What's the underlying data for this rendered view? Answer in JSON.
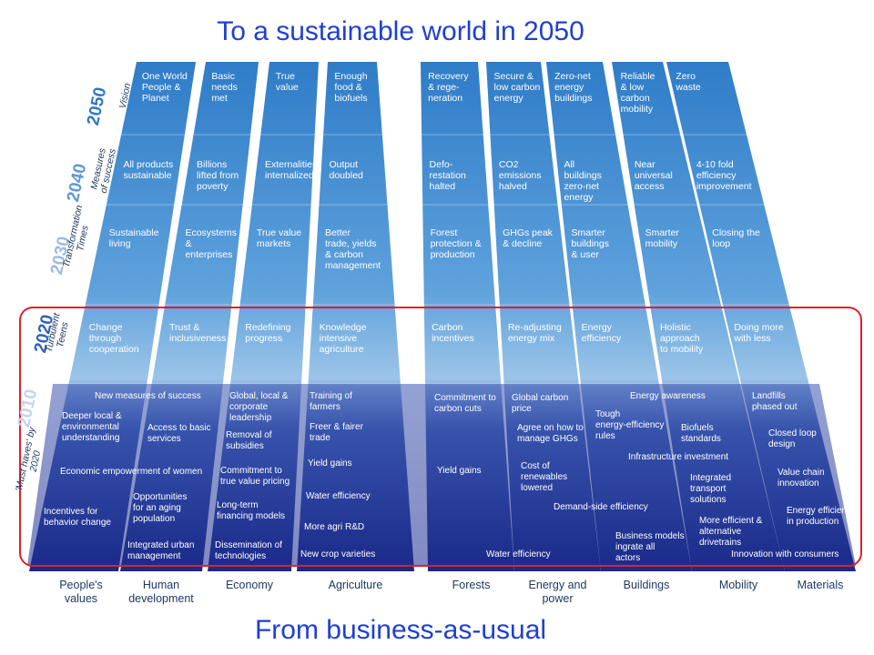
{
  "title": "To a sustainable world in 2050",
  "subtitle": "From business-as-usual",
  "years": [
    "2050",
    "2040",
    "2030",
    "2020",
    "2010"
  ],
  "row_labels": [
    "Vision",
    "Measures\nof success",
    "Transformation\nTimes",
    "Turbulent\nTeens",
    "'Must haves' by 2020"
  ],
  "columns": [
    {
      "name": "People's\nvalues",
      "cells": [
        "One World\nPeople &\nPlanet",
        "All products\nsustainable",
        "Sustainable\nliving",
        "Change\nthrough\ncooperation"
      ]
    },
    {
      "name": "Human\ndevelopment",
      "cells": [
        "Basic\nneeds\nmet",
        "Billions\nlifted from\npoverty",
        "Ecosystems\n&\nenterprises",
        "Trust &\ninclusiveness"
      ]
    },
    {
      "name": "Economy",
      "cells": [
        "True\nvalue",
        "Externalities\ninternalized",
        "True value\nmarkets",
        "Redefining\nprogress"
      ]
    },
    {
      "name": "Agriculture",
      "cells": [
        "Enough\nfood &\nbiofuels",
        "Output\ndoubled",
        "Better\ntrade, yields\n& carbon\nmanagement",
        "Knowledge\nintensive\nagriculture"
      ]
    },
    {
      "name": "Forests",
      "cells": [
        "Recovery\n& rege-\nneration",
        "Defo-\nrestation\nhalted",
        "Forest\nprotection &\nproduction",
        "Carbon\nincentives"
      ]
    },
    {
      "name": "Energy and\npower",
      "cells": [
        "Secure &\nlow carbon\nenergy",
        "CO2\nemissions\nhalved",
        "GHGs peak\n& decline",
        "Re-adjusting\nenergy mix"
      ]
    },
    {
      "name": "Buildings",
      "cells": [
        "Zero-net\nenergy\nbuildings",
        "All\nbuildings\nzero-net\nenergy",
        "Smarter\nbuildings\n& user",
        "Energy\nefficiency"
      ]
    },
    {
      "name": "Mobility",
      "cells": [
        "Reliable\n& low\ncarbon\nmobility",
        "Near\nuniversal\naccess",
        "Smarter\nmobility",
        "Holistic\napproach\nto mobility"
      ]
    },
    {
      "name": "Materials",
      "cells": [
        "Zero\nwaste",
        "4-10 fold\nefficiency\nimprovement",
        "Closing the\nloop",
        "Doing more\nwith less"
      ]
    }
  ],
  "must_haves": [
    "New measures of success",
    "Deeper local &\nenvironmental\nunderstanding",
    "Access to basic\nservices",
    "Economic empowerment of women",
    "Incentives for\nbehavior change",
    "Opportunities\nfor an aging\npopulation",
    "Integrated urban\nmanagement",
    "Global, local &\ncorporate\nleadership",
    "Removal of\nsubsidies",
    "Commitment to\ntrue value pricing",
    "Long-term\nfinancing models",
    "Dissemination of\ntechnologies",
    "Training of\nfarmers",
    "Freer & fairer\ntrade",
    "Yield gains",
    "Water efficiency",
    "More agri R&D",
    "New crop varieties",
    "Commitment to\ncarbon cuts",
    "Yield gains",
    "Water efficiency",
    "Global carbon\nprice",
    "Agree on how to\nmanage GHGs",
    "Cost of\nrenewables\nlowered",
    "Demand-side efficiency",
    "Energy awareness",
    "Tough\nenergy-efficiency\nrules",
    "Infrastructure investment",
    "Business models\ningrate all\nactors",
    "Biofuels\nstandards",
    "Integrated\ntransport\nsolutions",
    "More efficient &\nalternative\ndrivetrains",
    "Landfills\nphased out",
    "Closed loop\ndesign",
    "Value chain\ninnovation",
    "Energy efficiency\nin production",
    "Innovation with consumers"
  ],
  "colors": {
    "title": "#1f3fd1",
    "highlight": "#e0202a",
    "dark": "#1c2a86",
    "light": "#4f95d6"
  }
}
